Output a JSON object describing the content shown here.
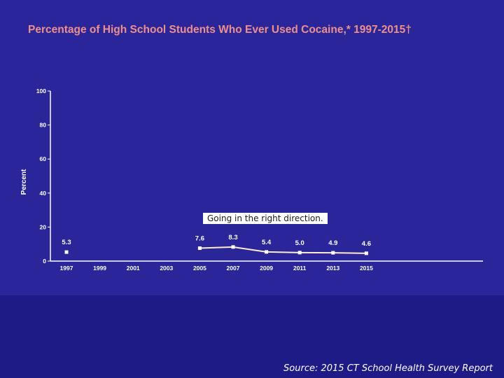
{
  "slide": {
    "annotation": "Going in the right direction.",
    "source": "Source: 2015 CT School Health Survey Report"
  },
  "chart_data": {
    "type": "line",
    "title": "Percentage of High School Students Who Ever Used Cocaine,* 1997-2015†",
    "xlabel": "",
    "ylabel": "Percent",
    "ylim": [
      0,
      100
    ],
    "yticks": [
      0,
      20,
      40,
      60,
      80,
      100
    ],
    "categories": [
      "1997",
      "1999",
      "2001",
      "2003",
      "2005",
      "2007",
      "2009",
      "2011",
      "2013",
      "2015"
    ],
    "series": [
      {
        "values": [
          5.3,
          null,
          null,
          null,
          7.6,
          8.3,
          5.4,
          5.0,
          4.9,
          4.6
        ],
        "labels": [
          "5.3",
          "",
          "",
          "",
          "7.6",
          "8.3",
          "5.4",
          "5.0",
          "4.9",
          "4.6"
        ],
        "connected_from_index": 4
      }
    ],
    "grid": false,
    "legend": "none",
    "colors": {
      "background": "#2a2599",
      "title": "#ee8f8f",
      "axis": "#ffffff",
      "line": "#ffeacc",
      "marker": "#ffffff"
    }
  }
}
